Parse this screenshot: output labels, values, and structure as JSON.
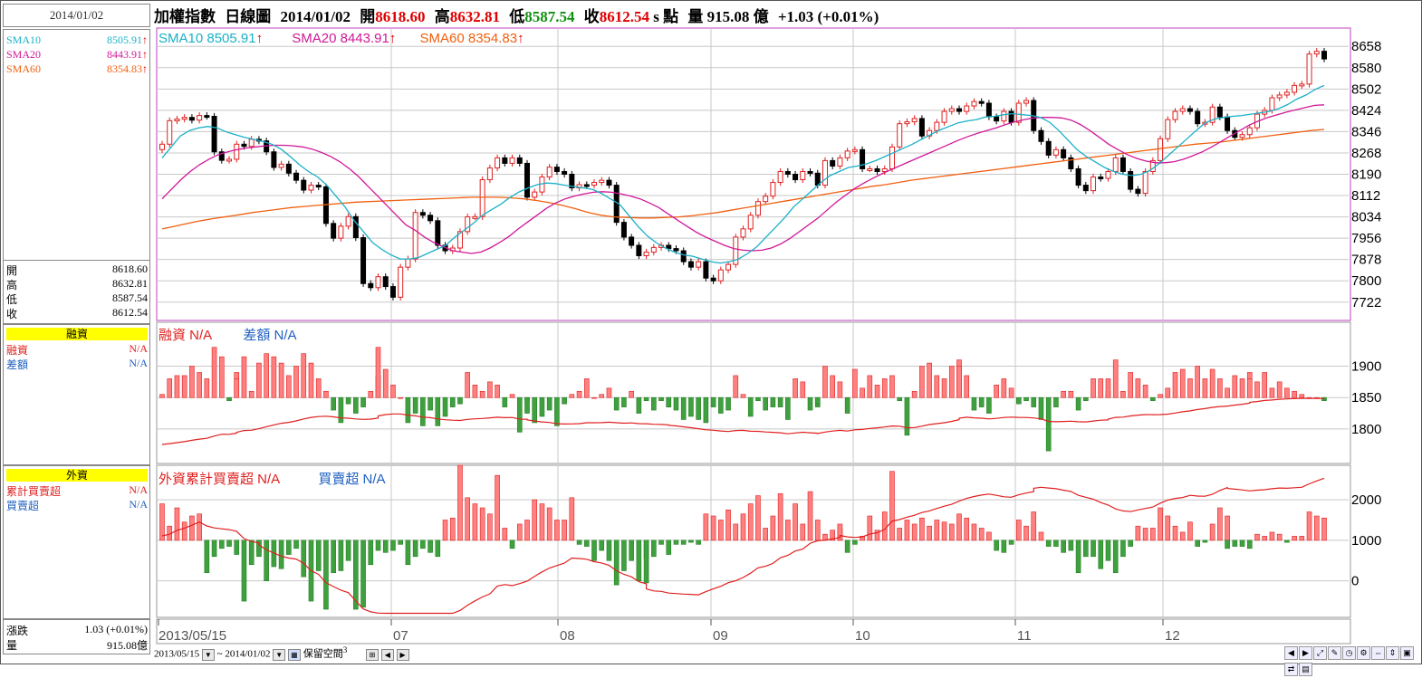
{
  "header": {
    "date": "2014/01/02",
    "title": "加權指數",
    "period": "日線圖",
    "bar_date": "2014/01/02",
    "open_label": "開",
    "open": "8618.60",
    "high_label": "高",
    "high": "8632.81",
    "low_label": "低",
    "low": "8587.54",
    "close_label": "收",
    "close": "8612.54",
    "close_suffix": "s",
    "unit": "點",
    "volume_label": "量",
    "volume": "915.08",
    "volume_unit": "億",
    "change": "+1.03 (+0.01%)"
  },
  "left": {
    "sma": [
      {
        "name": "SMA10",
        "value": "8505.91",
        "arrow": "↑",
        "color": "#1ab0c8"
      },
      {
        "name": "SMA20",
        "value": "8443.91",
        "arrow": "↑",
        "color": "#d01898"
      },
      {
        "name": "SMA60",
        "value": "8354.83",
        "arrow": "↑",
        "color": "#f06010"
      }
    ],
    "ohlc": [
      {
        "label": "開",
        "value": "8618.60"
      },
      {
        "label": "高",
        "value": "8632.81"
      },
      {
        "label": "低",
        "value": "8587.54"
      },
      {
        "label": "收",
        "value": "8612.54"
      }
    ],
    "margin": {
      "title": "融資",
      "row1_label": "融資",
      "row1_value": "N/A",
      "row2_label": "差額",
      "row2_value": "N/A"
    },
    "foreign": {
      "title": "外資",
      "row1_label": "累計買賣超",
      "row1_value": "N/A",
      "row2_label": "買賣超",
      "row2_value": "N/A"
    },
    "change": {
      "label": "漲跌",
      "value": "1.03 (+0.01%)"
    },
    "volume": {
      "label": "量",
      "value": "915.08億"
    }
  },
  "legends": {
    "price": [
      {
        "text": "SMA10 8505.91",
        "arrow": "↑",
        "color": "#1ab0c8"
      },
      {
        "text": "SMA20 8443.91",
        "arrow": "↑",
        "color": "#d01898"
      },
      {
        "text": "SMA60 8354.83",
        "arrow": "↑",
        "color": "#f06010"
      }
    ],
    "margin": [
      {
        "text": "融資 N/A",
        "color": "#e02020"
      },
      {
        "text": "差額 N/A",
        "color": "#2060c0"
      }
    ],
    "foreign": [
      {
        "text": "外資累計買賣超 N/A",
        "color": "#e02020"
      },
      {
        "text": "買賣超 N/A",
        "color": "#2060c0"
      }
    ]
  },
  "toolbar": {
    "start": "2013/05/15",
    "sep": "~",
    "end": "2014/01/02",
    "keep_label": "保留空間",
    "keep_value": "3"
  },
  "chart_data": [
    {
      "type": "candlestick",
      "title": "加權指數 日線圖",
      "x_start_label": "2013/05/15",
      "x_month_labels": [
        "07",
        "08",
        "09",
        "10",
        "11",
        "12"
      ],
      "y_ticks": [
        7722,
        7800,
        7878,
        7956,
        8034,
        8112,
        8190,
        8268,
        8346,
        8424,
        8502,
        8580,
        8658
      ],
      "ylim": [
        7655,
        8725
      ],
      "grid": true,
      "candles_close": [
        8300,
        8386,
        8392,
        8398,
        8388,
        8405,
        8402,
        8272,
        8241,
        8245,
        8300,
        8292,
        8318,
        8312,
        8272,
        8215,
        8227,
        8194,
        8168,
        8132,
        8150,
        8144,
        8010,
        7956,
        8000,
        8035,
        7958,
        7790,
        7775,
        7815,
        7779,
        7740,
        7850,
        7880,
        8050,
        8040,
        8020,
        7930,
        7910,
        7920,
        7980,
        8034,
        8035,
        8170,
        8213,
        8250,
        8230,
        8250,
        8230,
        8106,
        8125,
        8180,
        8216,
        8200,
        8190,
        8140,
        8152,
        8150,
        8160,
        8168,
        8150,
        8014,
        7960,
        7930,
        7892,
        7905,
        7922,
        7930,
        7918,
        7910,
        7870,
        7850,
        7870,
        7810,
        7800,
        7840,
        7860,
        7960,
        7990,
        8040,
        8090,
        8110,
        8160,
        8200,
        8190,
        8170,
        8200,
        8194,
        8150,
        8240,
        8220,
        8250,
        8275,
        8280,
        8210,
        8210,
        8200,
        8210,
        8290,
        8375,
        8382,
        8394,
        8330,
        8350,
        8380,
        8420,
        8430,
        8420,
        8440,
        8456,
        8450,
        8400,
        8385,
        8420,
        8380,
        8450,
        8460,
        8350,
        8310,
        8260,
        8280,
        8250,
        8210,
        8150,
        8130,
        8180,
        8175,
        8200,
        8250,
        8200,
        8135,
        8120,
        8200,
        8240,
        8320,
        8390,
        8420,
        8430,
        8420,
        8375,
        8380,
        8436,
        8400,
        8350,
        8325,
        8335,
        8360,
        8410,
        8424,
        8470,
        8480,
        8490,
        8515,
        8520,
        8630,
        8640,
        8612
      ],
      "sma10": [
        8250,
        8290,
        8330,
        8350,
        8360,
        8365,
        8360,
        8345,
        8335,
        8325,
        8318,
        8310,
        8300,
        8282,
        8255,
        8225,
        8200,
        8180,
        8150,
        8110,
        8070,
        8020,
        7980,
        7940,
        7915,
        7895,
        7880,
        7880,
        7885,
        7900,
        7915,
        7930,
        7960,
        7985,
        8010,
        8040,
        8060,
        8080,
        8105,
        8125,
        8140,
        8152,
        8158,
        8156,
        8150,
        8145,
        8140,
        8135,
        8120,
        8100,
        8080,
        8040,
        8000,
        7965,
        7940,
        7920,
        7905,
        7895,
        7890,
        7880,
        7870,
        7865,
        7870,
        7880,
        7900,
        7925,
        7960,
        7995,
        8030,
        8070,
        8100,
        8130,
        8160,
        8185,
        8200,
        8215,
        8220,
        8228,
        8240,
        8255,
        8270,
        8285,
        8300,
        8318,
        8335,
        8352,
        8365,
        8378,
        8385,
        8390,
        8400,
        8402,
        8408,
        8412,
        8408,
        8405,
        8398,
        8380,
        8350,
        8315,
        8280,
        8255,
        8235,
        8215,
        8200,
        8190,
        8185,
        8190,
        8205,
        8230,
        8260,
        8290,
        8320,
        8350,
        8378,
        8392,
        8398,
        8402,
        8405,
        8410,
        8415,
        8420,
        8430,
        8445,
        8465,
        8480,
        8500,
        8515
      ],
      "sma20": [
        8100,
        8135,
        8170,
        8200,
        8225,
        8245,
        8262,
        8272,
        8280,
        8286,
        8290,
        8294,
        8296,
        8296,
        8294,
        8290,
        8282,
        8270,
        8255,
        8235,
        8210,
        8180,
        8145,
        8110,
        8075,
        8040,
        8005,
        7985,
        7960,
        7940,
        7925,
        7910,
        7905,
        7900,
        7905,
        7920,
        7940,
        7962,
        7990,
        8015,
        8040,
        8065,
        8085,
        8100,
        8110,
        8118,
        8124,
        8126,
        8124,
        8118,
        8110,
        8100,
        8085,
        8068,
        8045,
        8022,
        8000,
        7978,
        7960,
        7945,
        7930,
        7918,
        7912,
        7910,
        7912,
        7920,
        7935,
        7955,
        7980,
        8005,
        8030,
        8060,
        8090,
        8115,
        8140,
        8160,
        8178,
        8195,
        8210,
        8225,
        8240,
        8255,
        8270,
        8285,
        8300,
        8315,
        8328,
        8340,
        8350,
        8360,
        8372,
        8382,
        8390,
        8396,
        8398,
        8398,
        8396,
        8388,
        8372,
        8350,
        8325,
        8300,
        8280,
        8262,
        8248,
        8238,
        8232,
        8232,
        8236,
        8245,
        8258,
        8272,
        8290,
        8310,
        8330,
        8350,
        8370,
        8385,
        8398,
        8408,
        8418,
        8426,
        8434,
        8442,
        8444
      ],
      "sma60": [
        7990,
        8000,
        8010,
        8020,
        8028,
        8035,
        8042,
        8050,
        8056,
        8062,
        8068,
        8072,
        8076,
        8080,
        8084,
        8088,
        8090,
        8092,
        8094,
        8096,
        8098,
        8100,
        8102,
        8104,
        8106,
        8106,
        8106,
        8104,
        8100,
        8094,
        8086,
        8076,
        8064,
        8050,
        8040,
        8034,
        8032,
        8030,
        8030,
        8032,
        8034,
        8038,
        8044,
        8050,
        8058,
        8066,
        8074,
        8082,
        8090,
        8098,
        8106,
        8114,
        8122,
        8130,
        8138,
        8146,
        8152,
        8160,
        8168,
        8174,
        8180,
        8186,
        8192,
        8198,
        8204,
        8210,
        8216,
        8222,
        8228,
        8234,
        8240,
        8246,
        8252,
        8258,
        8264,
        8270,
        8276,
        8282,
        8288,
        8294,
        8300,
        8304,
        8308,
        8314,
        8320,
        8326,
        8332,
        8338,
        8344,
        8350,
        8354
      ]
    },
    {
      "type": "bar+line",
      "title": "融資",
      "y_ticks": [
        1800,
        1850,
        1900
      ],
      "ylim": [
        1745,
        1970
      ],
      "diff_bars": [
        5,
        30,
        35,
        35,
        50,
        40,
        30,
        80,
        65,
        -5,
        40,
        30,
        65,
        10,
        55,
        70,
        65,
        55,
        35,
        50,
        70,
        55,
        30,
        10,
        -20,
        -40,
        -10,
        -25,
        -15,
        10,
        35,
        80,
        45,
        20,
        0,
        -40,
        -25,
        -45,
        -20,
        -45,
        -30,
        -15,
        -10,
        40,
        20,
        10,
        25,
        20,
        -15,
        5,
        -55,
        -5,
        -25,
        -40,
        -30,
        -20,
        -45,
        -10,
        5,
        10,
        30,
        0,
        5,
        15,
        -20,
        -15,
        10,
        -25,
        -5,
        -20,
        -5,
        -15,
        -15,
        -20,
        -35,
        -30,
        -35,
        -40,
        -15,
        -25,
        -20,
        35,
        5,
        -30,
        -5,
        -20,
        -15,
        -15,
        -35,
        30,
        25,
        -20,
        -15,
        -10,
        50,
        35,
        25,
        -25,
        45,
        15,
        35,
        20,
        30,
        35,
        -5,
        -60,
        10,
        50,
        55,
        35,
        30,
        50,
        60,
        50,
        35,
        -20,
        -15,
        -25,
        20,
        30,
        15,
        -10,
        -5,
        -15,
        -35,
        -85,
        -15,
        10,
        10,
        -20,
        -5,
        30,
        30,
        10,
        30,
        60,
        10,
        40,
        30,
        20,
        -5,
        5,
        15,
        40,
        45,
        30,
        50,
        30,
        45,
        30,
        15,
        35,
        30,
        40,
        30,
        25,
        40,
        15,
        25,
        15,
        10,
        5,
        0,
        0,
        -5
      ]
    },
    {
      "type": "bar+line",
      "title": "外資",
      "y_ticks": [
        0,
        1000,
        2000
      ],
      "ylim": [
        -900,
        2850
      ],
      "net_bars": [
        900,
        350,
        800,
        450,
        600,
        650,
        -800,
        -400,
        -200,
        -150,
        -350,
        -1500,
        -600,
        -300,
        -400,
        -1000,
        -650,
        -700,
        -350,
        -200,
        -900,
        -1500,
        -750,
        -1700,
        -800,
        -750,
        -500,
        -1700,
        -1650,
        -600,
        -250,
        -300,
        -250,
        -100,
        -600,
        -400,
        -200,
        -300,
        -400,
        500,
        200,
        550,
        1850,
        1050,
        900,
        800,
        650,
        1600,
        300,
        -200,
        400,
        500,
        1000,
        900,
        800,
        500,
        500,
        1050,
        -100,
        -150,
        -500,
        -250,
        -500,
        -1100,
        -750,
        -500,
        -1000,
        -450,
        -1050,
        -400,
        -100,
        -350,
        -100,
        -100,
        -50,
        -100,
        650,
        600,
        500,
        750,
        400,
        650,
        900,
        1100,
        300,
        600,
        1150,
        500,
        900,
        400,
        1200,
        500,
        150,
        250,
        300,
        400,
        -300,
        -100,
        100,
        600,
        250,
        700,
        1700,
        300,
        500,
        400,
        550,
        350,
        500,
        450,
        400,
        650,
        550,
        400,
        300,
        200,
        -250,
        -300,
        -100,
        500,
        350,
        300,
        700,
        200,
        -150,
        -150,
        -300,
        -250,
        -800,
        -400,
        -400,
        -700,
        -500,
        -800,
        -400,
        -150,
        350,
        300,
        300,
        800,
        600,
        350,
        200,
        450,
        -150,
        -50,
        400,
        800,
        600,
        -200,
        -150,
        -150,
        -200,
        150,
        100,
        200,
        150,
        -50,
        100,
        100,
        700,
        600,
        550
      ]
    }
  ]
}
